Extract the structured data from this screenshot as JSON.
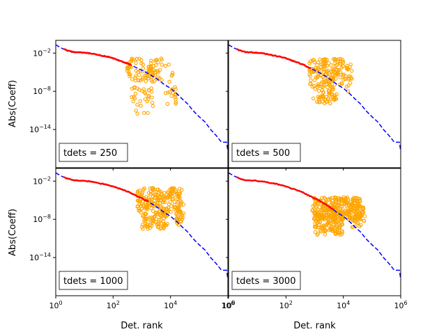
{
  "chart_data": {
    "type": "scatter",
    "layout": "2x2 grid, shared axes",
    "xlabel": "Det. rank",
    "ylabel": "Abs(Coeff)",
    "xscale": "log",
    "yscale": "log",
    "xlim": [
      1,
      1000000
    ],
    "ylim": [
      1e-20,
      1
    ],
    "x_ticks": [
      {
        "value": 1,
        "base": "10",
        "exp": "0"
      },
      {
        "value": 100,
        "base": "10",
        "exp": "2"
      },
      {
        "value": 10000,
        "base": "10",
        "exp": "4"
      },
      {
        "value": 1000000,
        "base": "10",
        "exp": "6"
      }
    ],
    "y_ticks": [
      {
        "value": 0.01,
        "base": "10",
        "exp": "−2"
      },
      {
        "value": 1e-08,
        "base": "10",
        "exp": "−8"
      },
      {
        "value": 1e-14,
        "base": "10",
        "exp": "−14"
      }
    ],
    "colors": {
      "reference": "#0000ff",
      "selected": "#ff0000",
      "scatter": "#ffa500",
      "text": "#000000"
    },
    "series_names": [
      "reference (dashed blue)",
      "selected determinants (red)",
      "sampled determinants (orange circles)"
    ],
    "reference_curve": {
      "x": [
        1,
        1.6,
        2.5,
        4,
        6,
        10,
        16,
        25,
        40,
        60,
        100,
        160,
        250,
        400,
        600,
        1000,
        1600,
        2500,
        4000,
        6000,
        10000,
        16000,
        25000,
        40000,
        60000,
        100000,
        160000,
        250000,
        400000,
        600000,
        900000,
        1000000
      ],
      "y": [
        0.2,
        0.06,
        0.025,
        0.015,
        0.013,
        0.011,
        0.009,
        0.006,
        0.004,
        0.0028,
        0.0015,
        0.0007,
        0.00035,
        0.00015,
        6e-05,
        2e-05,
        7e-06,
        2e-06,
        5e-07,
        1.2e-07,
        3e-08,
        5e-09,
        7e-10,
        1e-10,
        1e-11,
        1e-12,
        1.5e-13,
        1e-14,
        1e-15,
        1e-16,
        1e-16,
        4e-18
      ]
    },
    "panels": [
      {
        "label": "tdets = 250",
        "selected_range": [
          2,
          400
        ],
        "clusters": [
          {
            "x": [
              300,
              5000
            ],
            "y": [
              3e-07,
              0.0015
            ],
            "n": 90
          },
          {
            "x": [
              400,
              2500
            ],
            "y": [
              5e-11,
              1e-07
            ],
            "n": 28
          },
          {
            "x": [
              6000,
              16000
            ],
            "y": [
              1e-10,
              0.0005
            ],
            "n": 22
          },
          {
            "x": [
              600,
              2500
            ],
            "y": [
              3e-12,
              5e-11
            ],
            "n": 5
          }
        ]
      },
      {
        "label": "tdets = 500",
        "selected_range": [
          2,
          700
        ],
        "clusters": [
          {
            "x": [
              600,
              10000
            ],
            "y": [
              1e-07,
              0.0015
            ],
            "n": 140
          },
          {
            "x": [
              800,
              6000
            ],
            "y": [
              5e-10,
              1e-07
            ],
            "n": 50
          },
          {
            "x": [
              10000,
              20000
            ],
            "y": [
              1e-08,
              0.0003
            ],
            "n": 25
          },
          {
            "x": [
              1200,
              5000
            ],
            "y": [
              1e-10,
              5e-10
            ],
            "n": 12
          }
        ]
      },
      {
        "label": "tdets = 1000",
        "selected_range": [
          2,
          1600
        ],
        "clusters": [
          {
            "x": [
              700,
              25000
            ],
            "y": [
              1e-07,
              0.0008
            ],
            "n": 190
          },
          {
            "x": [
              1000,
              8000
            ],
            "y": [
              3e-10,
              1e-07
            ],
            "n": 70
          },
          {
            "x": [
              15000,
              30000
            ],
            "y": [
              1e-09,
              1e-05
            ],
            "n": 30
          }
        ]
      },
      {
        "label": "tdets = 3000",
        "selected_range": [
          2,
          4500
        ],
        "clusters": [
          {
            "x": [
              800,
              40000
            ],
            "y": [
              1e-08,
              3e-05
            ],
            "n": 280
          },
          {
            "x": [
              1000,
              10000
            ],
            "y": [
              3e-11,
              1e-07
            ],
            "n": 120
          },
          {
            "x": [
              20000,
              60000
            ],
            "y": [
              5e-10,
              1e-06
            ],
            "n": 40
          }
        ]
      }
    ]
  }
}
